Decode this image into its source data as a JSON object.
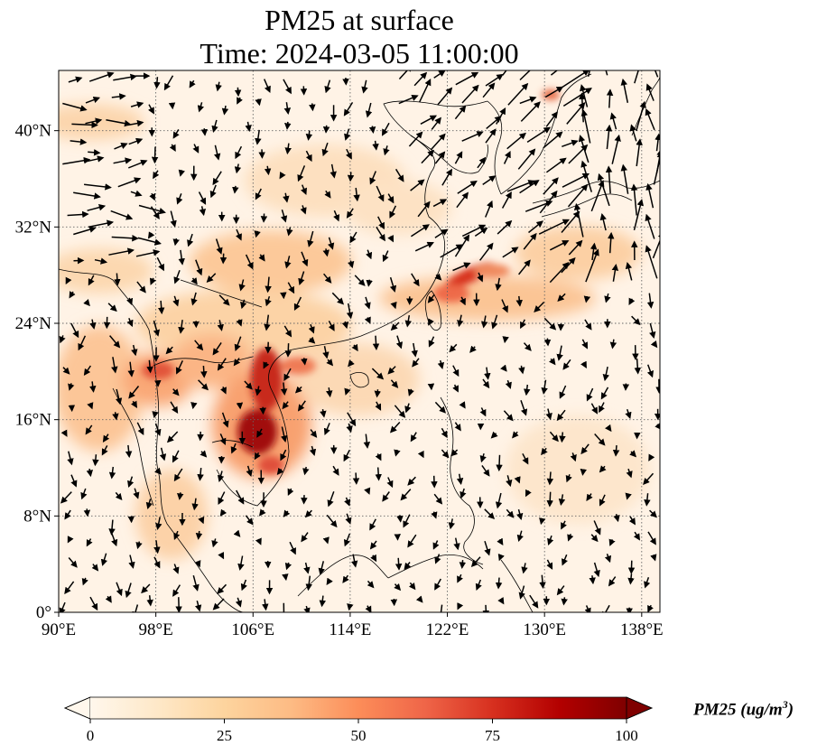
{
  "title": {
    "line1": "PM25 at surface",
    "line2": "Time: 2024-03-05 11:00:00"
  },
  "map": {
    "projection": "PlateCarree",
    "lon_range": [
      90,
      139.5
    ],
    "lat_range": [
      0,
      45
    ],
    "gridlines": "dotted",
    "coastlines": true,
    "borders": true,
    "wind_vectors": true,
    "x_ticks": [
      {
        "value": 90,
        "label": "90°E"
      },
      {
        "value": 98,
        "label": "98°E"
      },
      {
        "value": 106,
        "label": "106°E"
      },
      {
        "value": 114,
        "label": "114°E"
      },
      {
        "value": 122,
        "label": "122°E"
      },
      {
        "value": 130,
        "label": "130°E"
      },
      {
        "value": 138,
        "label": "138°E"
      }
    ],
    "y_ticks": [
      {
        "value": 0,
        "label": "0°"
      },
      {
        "value": 8,
        "label": "8°N"
      },
      {
        "value": 16,
        "label": "16°N"
      },
      {
        "value": 24,
        "label": "24°N"
      },
      {
        "value": 32,
        "label": "32°N"
      },
      {
        "value": 40,
        "label": "40°N"
      }
    ]
  },
  "colorbar": {
    "cmap": "OrRd",
    "colors": [
      "#fff7ec",
      "#fee8c8",
      "#fdd49e",
      "#fdbb84",
      "#fc8d59",
      "#ef6548",
      "#d7301f",
      "#b30000",
      "#7f0000"
    ],
    "range": [
      0,
      100
    ],
    "extend": "both",
    "ticks": [
      {
        "value": 0,
        "label": "0"
      },
      {
        "value": 25,
        "label": "25"
      },
      {
        "value": 50,
        "label": "50"
      },
      {
        "value": 75,
        "label": "75"
      },
      {
        "value": 100,
        "label": "100"
      }
    ],
    "label_prefix": "PM25 (ug/m",
    "label_exp": "3",
    "label_suffix": ")"
  }
}
